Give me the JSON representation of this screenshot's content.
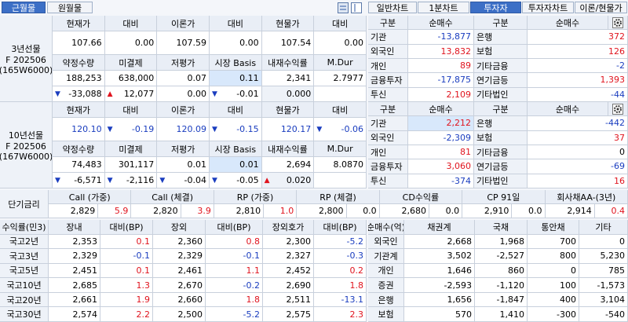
{
  "tabs": {
    "months": [
      "근월물",
      "원월물"
    ],
    "active_month": 0,
    "views": [
      "일반차트",
      "1분차트",
      "투자자",
      "투자자차트",
      "이론/현물가"
    ],
    "active_view": 2
  },
  "futures": {
    "headers_1": [
      "현재가",
      "대비",
      "이론가",
      "대비",
      "현물가",
      "대비"
    ],
    "headers_2": [
      "약정수량",
      "미결제",
      "저평가",
      "시장 Basis",
      "내재수익률",
      "M.Dur"
    ],
    "contracts": [
      {
        "label": [
          "3년선물",
          "F 202506",
          "(165W6000)"
        ],
        "price_color": "#000000",
        "prices": [
          "107.66",
          "0.00",
          "107.59",
          "0.00",
          "107.54",
          "0.00"
        ],
        "stats": [
          "188,253",
          "638,000",
          "0.07",
          "0.11",
          "2,341",
          "2.7977"
        ],
        "changes": [
          {
            "arrow": "▼",
            "value": "-33,088"
          },
          {
            "arrow": "▲",
            "value": "12,077"
          },
          "0.00",
          {
            "arrow": "▼",
            "value": "-0.01"
          },
          "0.000"
        ]
      },
      {
        "label": [
          "10년선물",
          "F 202506",
          "(167W6000)"
        ],
        "price_color": "#1a3dbf",
        "prices": [
          "120.10",
          {
            "arrow": "▼",
            "value": "-0.19"
          },
          "120.09",
          {
            "arrow": "▼",
            "value": "-0.15"
          },
          "120.17",
          {
            "arrow": "▼",
            "value": "-0.06"
          }
        ],
        "stats": [
          "74,483",
          "301,117",
          "0.01",
          "0.01",
          "2,694",
          "8.0870"
        ],
        "changes": [
          {
            "arrow": "▼",
            "value": "-6,571"
          },
          {
            "arrow": "▼",
            "value": "-2,116"
          },
          {
            "arrow": "▼",
            "value": "-0.04"
          },
          {
            "arrow": "▼",
            "value": "-0.05"
          },
          {
            "arrow": "▲",
            "value": "0.020"
          }
        ]
      }
    ]
  },
  "investors": {
    "headers": [
      "구분",
      "순매수",
      "구분",
      "순매수"
    ],
    "tables": [
      [
        [
          "기관",
          "-13,877",
          "은행",
          "372"
        ],
        [
          "외국인",
          "13,832",
          "보험",
          "126"
        ],
        [
          "개인",
          "89",
          "기타금융",
          "-2"
        ],
        [
          "금융투자",
          "-17,875",
          "연기금등",
          "1,393"
        ],
        [
          "투신",
          "2,109",
          "기타법인",
          "-44"
        ]
      ],
      [
        [
          "기관",
          "2,212",
          "은행",
          "-442"
        ],
        [
          "외국인",
          "-2,309",
          "보험",
          "37"
        ],
        [
          "개인",
          "81",
          "기타금융",
          "0"
        ],
        [
          "금융투자",
          "3,060",
          "연기금등",
          "-69"
        ],
        [
          "투신",
          "-374",
          "기타법인",
          "16"
        ]
      ]
    ]
  },
  "short_rates": {
    "label": "단기금리",
    "headers": [
      "Call (가중)",
      "Call (체결)",
      "RP (가중)",
      "RP (체결)",
      "CD수익률",
      "CP 91일",
      "회사채AA-(3년)"
    ],
    "values": [
      [
        "2,829",
        "5.9"
      ],
      [
        "2,820",
        "3.9"
      ],
      [
        "2,810",
        "1.0"
      ],
      [
        "2,800",
        "0.0"
      ],
      [
        "2,680",
        "0.0"
      ],
      [
        "2,910",
        "0.0"
      ],
      [
        "2,914",
        "0.4"
      ]
    ]
  },
  "yields": {
    "headers": [
      "수익률(민3)",
      "장내",
      "대비(BP)",
      "장외",
      "대비(BP)",
      "장외호가",
      "대비(BP)"
    ],
    "rows": [
      [
        "국고2년",
        "2,353",
        "0.1",
        "2,360",
        "0.8",
        "2,300",
        "-5.2"
      ],
      [
        "국고3년",
        "2,329",
        "-0.1",
        "2,329",
        "-0.1",
        "2,327",
        "-0.3"
      ],
      [
        "국고5년",
        "2,451",
        "0.1",
        "2,461",
        "1.1",
        "2,452",
        "0.2"
      ],
      [
        "국고10년",
        "2,685",
        "1.3",
        "2,670",
        "-0.2",
        "2,690",
        "1.8"
      ],
      [
        "국고20년",
        "2,661",
        "1.9",
        "2,660",
        "1.8",
        "2,511",
        "-13.1"
      ],
      [
        "국고30년",
        "2,574",
        "2.2",
        "2,500",
        "-5.2",
        "2,575",
        "2.3"
      ]
    ]
  },
  "net_buying": {
    "headers": [
      "순매수(억)",
      "채권계",
      "국채",
      "통안채",
      "기타"
    ],
    "rows": [
      [
        "외국인",
        "2,668",
        "1,968",
        "700",
        "0"
      ],
      [
        "기관계",
        "3,502",
        "-2,527",
        "800",
        "5,230"
      ],
      [
        "개인",
        "1,646",
        "860",
        "0",
        "785"
      ],
      [
        "증권",
        "-2,593",
        "-1,120",
        "100",
        "-1,573"
      ],
      [
        "은행",
        "1,656",
        "-1,847",
        "400",
        "3,104"
      ],
      [
        "보험",
        "570",
        "1,410",
        "-300",
        "-540"
      ]
    ]
  }
}
